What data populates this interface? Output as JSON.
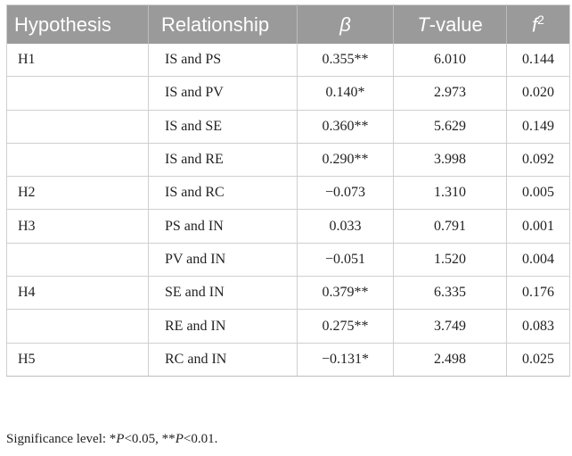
{
  "table": {
    "headers": {
      "hypothesis": "Hypothesis",
      "relationship": "Relationship",
      "beta": "β",
      "tvalue_letter": "T",
      "tvalue_rest": "-value",
      "f2_letter": "f",
      "f2_sup": "2"
    },
    "rows": [
      {
        "hypothesis": "H1",
        "relationship": "IS and PS",
        "beta": "0.355**",
        "t": "6.010",
        "f2": "0.144"
      },
      {
        "hypothesis": "",
        "relationship": "IS and PV",
        "beta": "0.140*",
        "t": "2.973",
        "f2": "0.020"
      },
      {
        "hypothesis": "",
        "relationship": "IS and SE",
        "beta": "0.360**",
        "t": "5.629",
        "f2": "0.149"
      },
      {
        "hypothesis": "",
        "relationship": "IS and RE",
        "beta": "0.290**",
        "t": "3.998",
        "f2": "0.092"
      },
      {
        "hypothesis": "H2",
        "relationship": "IS and RC",
        "beta": "−0.073",
        "t": "1.310",
        "f2": "0.005"
      },
      {
        "hypothesis": "H3",
        "relationship": "PS and IN",
        "beta": "0.033",
        "t": "0.791",
        "f2": "0.001"
      },
      {
        "hypothesis": "",
        "relationship": "PV and IN",
        "beta": "−0.051",
        "t": "1.520",
        "f2": "0.004"
      },
      {
        "hypothesis": "H4",
        "relationship": "SE and IN",
        "beta": "0.379**",
        "t": "6.335",
        "f2": "0.176"
      },
      {
        "hypothesis": "",
        "relationship": "RE and IN",
        "beta": "0.275**",
        "t": "3.749",
        "f2": "0.083"
      },
      {
        "hypothesis": "H5",
        "relationship": "RC and IN",
        "beta": "−0.131*",
        "t": "2.498",
        "f2": "0.025"
      }
    ]
  },
  "footnote": {
    "prefix": "Significance level: *",
    "p1": "P",
    "mid": "<0.05, **",
    "p2": "P",
    "end": "<0.01."
  },
  "colors": {
    "header_bg": "#9a9a9a",
    "header_text": "#ffffff",
    "grid": "#cfcfcf"
  }
}
